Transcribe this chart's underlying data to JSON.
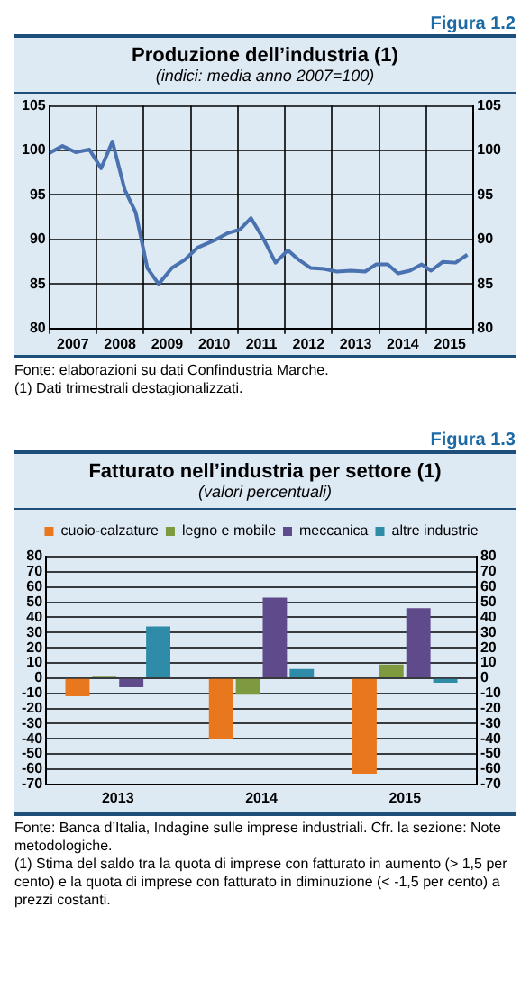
{
  "chart_data": [
    {
      "type": "line",
      "title": "Produzione dell’industria (1)",
      "subtitle": "(indici: media anno 2007=100)",
      "annotations": [
        "Figura 1.2",
        "Fonte: elaborazioni su dati Confindustria Marche.",
        "(1) Dati trimestrali destagionalizzati."
      ],
      "series": [
        {
          "color": "#4a72b0",
          "x": [
            2007.0,
            2007.28,
            2007.56,
            2007.85,
            2008.1,
            2008.34,
            2008.6,
            2008.83,
            2009.08,
            2009.32,
            2009.6,
            2009.87,
            2010.15,
            2010.5,
            2010.78,
            2011.04,
            2011.28,
            2011.54,
            2011.8,
            2012.06,
            2012.3,
            2012.55,
            2012.83,
            2013.1,
            2013.4,
            2013.7,
            2013.93,
            2014.18,
            2014.4,
            2014.65,
            2014.9,
            2015.1,
            2015.35,
            2015.62,
            2015.87
          ],
          "values": [
            99.7,
            100.5,
            99.8,
            100.1,
            98.0,
            101.0,
            95.6,
            93.1,
            86.8,
            85.0,
            86.8,
            87.7,
            89.1,
            89.9,
            90.7,
            91.1,
            92.4,
            90.1,
            87.4,
            88.8,
            87.7,
            86.8,
            86.7,
            86.4,
            86.5,
            86.4,
            87.2,
            87.2,
            86.2,
            86.5,
            87.2,
            86.5,
            87.5,
            87.4,
            88.3
          ]
        }
      ],
      "xlim": [
        2007,
        2016
      ],
      "xticks": [
        {
          "value": 2007,
          "label": null
        },
        {
          "value": 2007.5,
          "label": "2007"
        },
        {
          "value": 2008,
          "label": null
        },
        {
          "value": 2008.5,
          "label": "2008"
        },
        {
          "value": 2009,
          "label": null
        },
        {
          "value": 2009.5,
          "label": "2009"
        },
        {
          "value": 2010,
          "label": null
        },
        {
          "value": 2010.5,
          "label": "2010"
        },
        {
          "value": 2011,
          "label": null
        },
        {
          "value": 2011.5,
          "label": "2011"
        },
        {
          "value": 2012,
          "label": null
        },
        {
          "value": 2012.5,
          "label": "2012"
        },
        {
          "value": 2013,
          "label": null
        },
        {
          "value": 2013.5,
          "label": "2013"
        },
        {
          "value": 2014,
          "label": null
        },
        {
          "value": 2014.5,
          "label": "2014"
        },
        {
          "value": 2015,
          "label": null
        },
        {
          "value": 2015.5,
          "label": "2015"
        },
        {
          "value": 2016,
          "label": null
        }
      ],
      "ylim": [
        80,
        105
      ],
      "yticks": [
        80,
        85,
        90,
        95,
        100,
        105
      ],
      "y2lim": [
        80,
        105
      ],
      "y2ticks": [
        80,
        85,
        90,
        95,
        100,
        105
      ],
      "grid": true,
      "marker": "none"
    },
    {
      "type": "bar",
      "title": "Fatturato nell’industria per settore (1)",
      "subtitle": "(valori percentuali)",
      "annotations": [
        "Figura 1.3",
        "Fonte: Banca d’Italia, Indagine sulle imprese industriali. Cfr. la sezione: Note metodologiche.",
        "(1) Stima del saldo tra la quota di imprese con fatturato in aumento (> 1,5 per cento) e la quota di imprese con fatturato in diminuzione (< -1,5 per cento) a prezzi costanti."
      ],
      "categories": [
        "2013",
        "2014",
        "2015"
      ],
      "series": [
        {
          "name": "cuoio-calzature",
          "color": "#e8771e",
          "values": [
            -12,
            -40,
            -63
          ]
        },
        {
          "name": "legno e mobile",
          "color": "#7f9a3e",
          "values": [
            1,
            -11,
            9
          ]
        },
        {
          "name": "meccanica",
          "color": "#5f4b8b",
          "values": [
            -6,
            53,
            46
          ]
        },
        {
          "name": "altre industrie",
          "color": "#2e8ca8",
          "values": [
            34,
            6,
            -3
          ]
        }
      ],
      "ylim": [
        -70,
        80
      ],
      "yticks": [
        -70,
        -60,
        -50,
        -40,
        -30,
        -20,
        -10,
        0,
        10,
        20,
        30,
        40,
        50,
        60,
        70,
        80
      ],
      "y2lim": [
        -70,
        80
      ],
      "y2ticks": [
        -70,
        -60,
        -50,
        -40,
        -30,
        -20,
        -10,
        0,
        10,
        20,
        30,
        40,
        50,
        60,
        70,
        80
      ],
      "grid": "y",
      "legend": "top"
    }
  ]
}
